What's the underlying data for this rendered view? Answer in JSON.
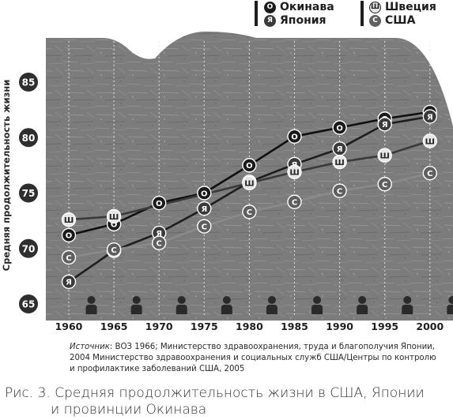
{
  "legend": [
    {
      "glyph": "О",
      "label": "Окинава",
      "color": "#1a1a1a",
      "text": "#ffffff"
    },
    {
      "glyph": "Я",
      "label": "Япония",
      "color": "#3a3a3a",
      "text": "#ffffff"
    },
    {
      "glyph": "Ш",
      "label": "Швеция",
      "color": "#e6e6e6",
      "text": "#222222"
    },
    {
      "glyph": "С",
      "label": "США",
      "color": "#5f5f5f",
      "text": "#ffffff"
    }
  ],
  "source": {
    "prefix": "Источник",
    "text": ": ВОЗ 1966; Министерство здравоохранения, труда и благополучия Японии, 2004 Министерство здравоохранения и социальных служб США/Центры по контролю и профилактике заболеваний США, 2005"
  },
  "caption": {
    "line1": "Рис. 3. Средняя продолжительность жизни в США, Японии",
    "line2": "и провинции Окинава"
  },
  "chart_data": {
    "type": "line",
    "title": "",
    "xlabel": "",
    "ylabel": "Средняя продолжительность жизни",
    "x": [
      1960,
      1965,
      1970,
      1975,
      1980,
      1985,
      1990,
      1995,
      2000
    ],
    "x_tick_labels": [
      "1960",
      "1965",
      "1970",
      "1975",
      "1980",
      "1985",
      "1990",
      "1995",
      "2000"
    ],
    "y_ticks": [
      65,
      70,
      75,
      80,
      85
    ],
    "ylim": [
      65,
      85
    ],
    "grid": "vertical dashed",
    "legend_position": "top-right",
    "series": [
      {
        "name": "Окинава",
        "glyph": "О",
        "marker_color": "#1a1a1a",
        "glyph_color": "#ffffff",
        "line_color": "#101010",
        "values": [
          71.2,
          72.2,
          74.1,
          75.0,
          77.5,
          80.1,
          80.9,
          81.7,
          82.3
        ]
      },
      {
        "name": "Япония",
        "glyph": "Я",
        "marker_color": "#3a3a3a",
        "glyph_color": "#ffffff",
        "line_color": "#1e1e1e",
        "values": [
          67.0,
          69.8,
          71.4,
          73.6,
          76.0,
          77.6,
          79.0,
          81.2,
          81.9
        ]
      },
      {
        "name": "Швеция",
        "glyph": "Ш",
        "marker_color": "#e6e6e6",
        "glyph_color": "#222222",
        "line_color": "#3a3a3a",
        "values": [
          72.6,
          72.9,
          null,
          null,
          75.9,
          76.9,
          77.8,
          78.4,
          79.7
        ]
      },
      {
        "name": "США",
        "glyph": "С",
        "marker_color": "#5f5f5f",
        "glyph_color": "#ffffff",
        "line_color": "#8a8a8a",
        "values": [
          69.2,
          69.9,
          70.5,
          72.0,
          73.3,
          74.2,
          75.2,
          75.8,
          76.8
        ]
      }
    ],
    "colors": {
      "panel": "#7e7e7e",
      "panel_dark": "#6a6a6a",
      "ytick_badge": "#2e2e2e",
      "person_icon": "#2a2a2a"
    }
  }
}
